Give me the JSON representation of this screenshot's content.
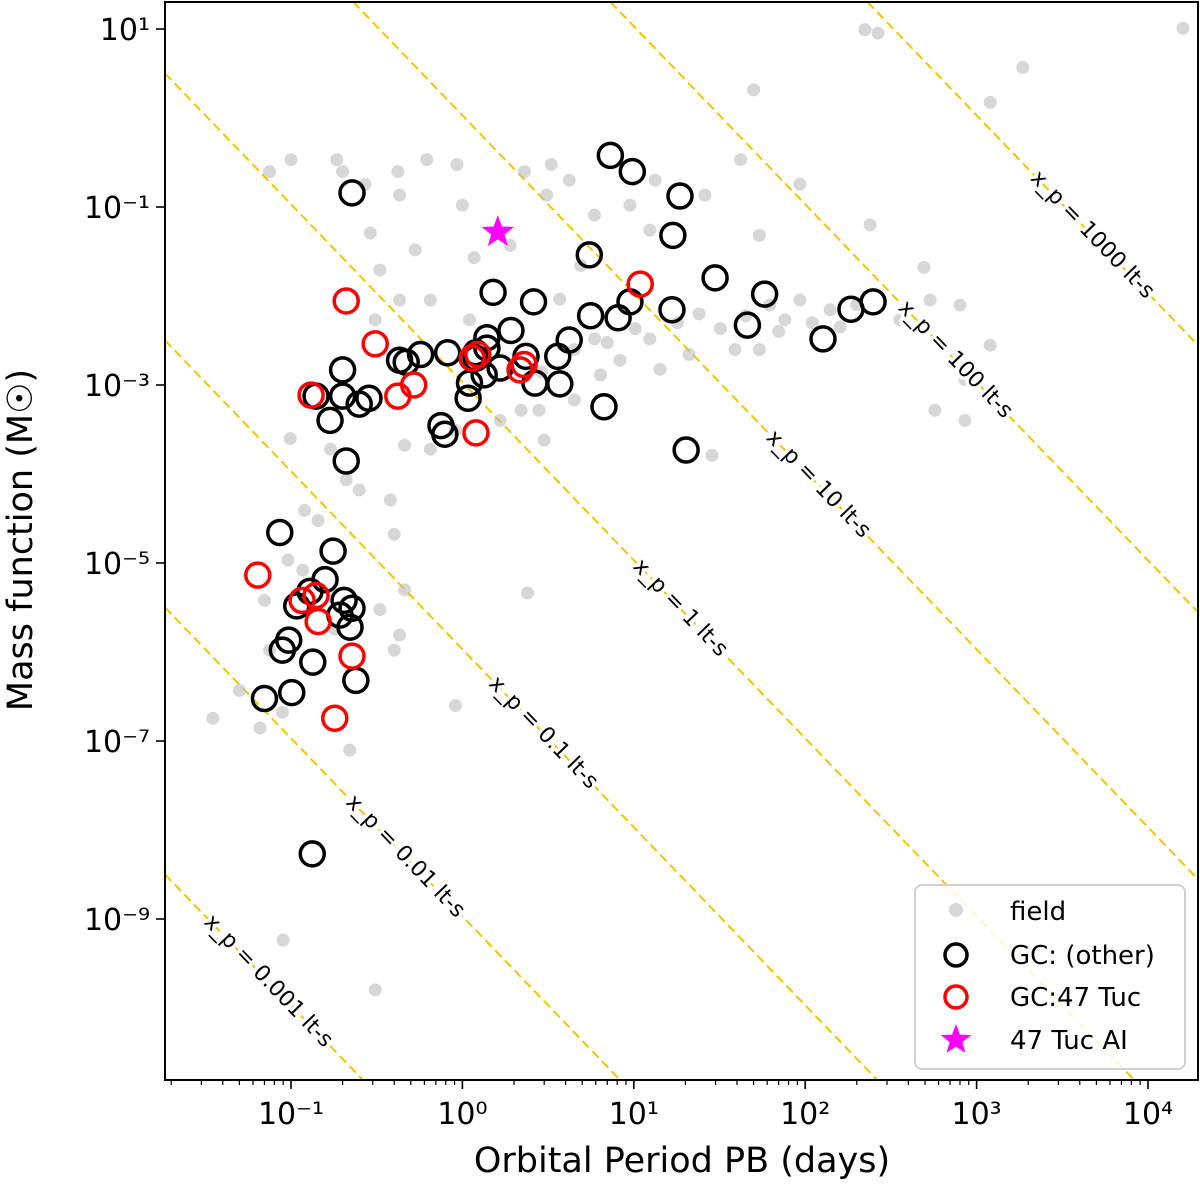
{
  "chart_data": {
    "type": "scatter",
    "xlabel": "Orbital Period PB (days)",
    "ylabel": "Mass function (M☉)",
    "x_scale": "log",
    "y_scale": "log",
    "xlim": [
      0.0186,
      19500
    ],
    "ylim": [
      1.6e-11,
      20
    ],
    "grid": false,
    "legend_position": "bottom-right",
    "x_ticks": [
      {
        "value": 0.1,
        "label": "10⁻¹"
      },
      {
        "value": 1,
        "label": "10⁰"
      },
      {
        "value": 10,
        "label": "10¹"
      },
      {
        "value": 100,
        "label": "10²"
      },
      {
        "value": 1000,
        "label": "10³"
      },
      {
        "value": 10000,
        "label": "10⁴"
      }
    ],
    "y_ticks": [
      {
        "value": 10,
        "label": "10¹"
      },
      {
        "value": 0.1,
        "label": "10⁻¹"
      },
      {
        "value": 0.001,
        "label": "10⁻³"
      },
      {
        "value": 1e-05,
        "label": "10⁻⁵"
      },
      {
        "value": 1e-07,
        "label": "10⁻⁷"
      },
      {
        "value": 1e-09,
        "label": "10⁻⁹"
      }
    ],
    "reference_lines": {
      "color": "#f2c500",
      "style": "dashed",
      "lines": [
        {
          "x_p": 0.001,
          "label": "x_p = 0.001 lt-s"
        },
        {
          "x_p": 0.01,
          "label": "x_p = 0.01 lt-s"
        },
        {
          "x_p": 0.1,
          "label": "x_p = 0.1 lt-s"
        },
        {
          "x_p": 1,
          "label": "x_p = 1 lt-s"
        },
        {
          "x_p": 10,
          "label": "x_p = 10 lt-s"
        },
        {
          "x_p": 100,
          "label": "x_p = 100 lt-s"
        },
        {
          "x_p": 1000,
          "label": "x_p = 1000 lt-s"
        }
      ]
    },
    "series": [
      {
        "name": "field",
        "marker": "dot",
        "color": "#bdbdbd",
        "points": [
          [
            0.075,
            0.25
          ],
          [
            0.1,
            0.34
          ],
          [
            0.185,
            0.34
          ],
          [
            0.2,
            0.25
          ],
          [
            0.27,
            0.18
          ],
          [
            0.42,
            0.25
          ],
          [
            0.43,
            0.136
          ],
          [
            0.62,
            0.34
          ],
          [
            0.93,
            0.3
          ],
          [
            1.0,
            0.105
          ],
          [
            1.17,
            0.027
          ],
          [
            1.9,
            0.037
          ],
          [
            2.3,
            0.25
          ],
          [
            3.3,
            0.3
          ],
          [
            4.2,
            0.2
          ],
          [
            3.1,
            0.136
          ],
          [
            9.5,
            0.105
          ],
          [
            13.3,
            0.2
          ],
          [
            26,
            0.136
          ],
          [
            42,
            0.34
          ],
          [
            54,
            0.048
          ],
          [
            12.4,
            0.055
          ],
          [
            5.9,
            0.081
          ],
          [
            4.9,
            0.022
          ],
          [
            3.7,
            0.0092
          ],
          [
            10.2,
            0.0043
          ],
          [
            12.4,
            0.0033
          ],
          [
            24,
            0.0063
          ],
          [
            32,
            0.0043
          ],
          [
            39,
            0.0025
          ],
          [
            62,
            0.0079
          ],
          [
            76,
            0.0054
          ],
          [
            93,
            0.009
          ],
          [
            54,
            0.0025
          ],
          [
            21,
            0.0022
          ],
          [
            14.2,
            0.0015
          ],
          [
            8.3,
            0.0019
          ],
          [
            6.4,
            0.0013
          ],
          [
            4.5,
            0.00068
          ],
          [
            4.5,
            0.0025
          ],
          [
            5.9,
            0.0033
          ],
          [
            2.8,
            0.00052
          ],
          [
            3.0,
            0.00024
          ],
          [
            2.2,
            0.00052
          ],
          [
            1.66,
            0.0004
          ],
          [
            0.91,
            0.00031
          ],
          [
            0.65,
            0.00019
          ],
          [
            0.46,
            0.00021
          ],
          [
            0.38,
            5.1e-05
          ],
          [
            0.4,
            2.1e-05
          ],
          [
            0.25,
            6.6e-05
          ],
          [
            0.21,
            8.6e-05
          ],
          [
            0.17,
            0.00019
          ],
          [
            0.099,
            0.00025
          ],
          [
            0.12,
            3.9e-05
          ],
          [
            0.144,
            3e-05
          ],
          [
            0.117,
            8.3e-06
          ],
          [
            0.096,
            1.08e-05
          ],
          [
            0.07,
            3.8e-06
          ],
          [
            0.05,
            3.7e-07
          ],
          [
            0.035,
            1.8e-07
          ],
          [
            0.066,
            1.4e-07
          ],
          [
            0.089,
            2.1e-07
          ],
          [
            0.91,
            2.5e-07
          ],
          [
            0.4,
            1.05e-06
          ],
          [
            0.43,
            1.55e-06
          ],
          [
            0.33,
            3e-06
          ],
          [
            0.46,
            5e-06
          ],
          [
            0.18,
            1.8e-06
          ],
          [
            2.4,
            4.6e-06
          ],
          [
            0.075,
            1.05e-06
          ],
          [
            0.22,
            7.9e-08
          ],
          [
            0.43,
            0.009
          ],
          [
            0.31,
            0.0054
          ],
          [
            1.1,
            0.0054
          ],
          [
            0.33,
            0.0196
          ],
          [
            0.53,
            0.033
          ],
          [
            0.65,
            0.009
          ],
          [
            0.29,
            0.051
          ],
          [
            0.31,
            1.6e-10
          ],
          [
            0.09,
            5.8e-10
          ],
          [
            16000,
            10.2
          ],
          [
            223,
            9.8
          ],
          [
            266,
            9.0
          ],
          [
            1860,
            3.7
          ],
          [
            1200,
            1.5
          ],
          [
            50,
            2.07
          ],
          [
            93,
            0.18
          ],
          [
            239,
            0.063
          ],
          [
            493,
            0.021
          ],
          [
            800,
            0.0079
          ],
          [
            1200,
            0.0028
          ],
          [
            855,
            0.00115
          ],
          [
            571,
            0.00052
          ],
          [
            855,
            0.0004
          ],
          [
            28.6,
            0.000162
          ],
          [
            140,
            0.007
          ],
          [
            357,
            0.0054
          ],
          [
            535,
            0.009
          ],
          [
            110,
            0.005
          ],
          [
            70,
            0.004
          ],
          [
            45,
            0.006
          ],
          [
            18,
            0.005
          ],
          [
            7,
            0.003
          ],
          [
            2.9,
            0.0014
          ],
          [
            200,
            0.008
          ],
          [
            160,
            0.0045
          ]
        ]
      },
      {
        "name": "GC: (other)",
        "marker": "open-circle",
        "color": "#000000",
        "points": [
          [
            0.227,
            0.144
          ],
          [
            7.3,
            0.38
          ],
          [
            9.8,
            0.25
          ],
          [
            18.6,
            0.133
          ],
          [
            16.9,
            0.048
          ],
          [
            5.5,
            0.029
          ],
          [
            29.8,
            0.016
          ],
          [
            1.51,
            0.011
          ],
          [
            2.6,
            0.0086
          ],
          [
            9.5,
            0.0086
          ],
          [
            16.7,
            0.007
          ],
          [
            58,
            0.0105
          ],
          [
            5.6,
            0.006
          ],
          [
            8.1,
            0.0057
          ],
          [
            46,
            0.0047
          ],
          [
            185,
            0.0071
          ],
          [
            249,
            0.0086
          ],
          [
            127,
            0.0033
          ],
          [
            1.92,
            0.0041
          ],
          [
            1.39,
            0.0034
          ],
          [
            1.39,
            0.0026
          ],
          [
            1.2,
            0.0023
          ],
          [
            1.2,
            0.002
          ],
          [
            0.82,
            0.0023
          ],
          [
            0.57,
            0.0022
          ],
          [
            0.43,
            0.0019
          ],
          [
            0.47,
            0.0018
          ],
          [
            2.35,
            0.0021
          ],
          [
            3.6,
            0.0021
          ],
          [
            4.2,
            0.0032
          ],
          [
            3.7,
            0.00103
          ],
          [
            2.65,
            0.00105
          ],
          [
            1.66,
            0.00155
          ],
          [
            1.34,
            0.0013
          ],
          [
            1.1,
            0.00105
          ],
          [
            1.08,
            0.00071
          ],
          [
            0.2,
            0.00148
          ],
          [
            0.2,
            0.00075
          ],
          [
            0.14,
            0.00075
          ],
          [
            0.25,
            0.00061
          ],
          [
            0.285,
            0.00071
          ],
          [
            0.169,
            0.0004
          ],
          [
            0.75,
            0.00035
          ],
          [
            0.79,
            0.00028
          ],
          [
            6.7,
            0.00057
          ],
          [
            20.2,
            0.000186
          ],
          [
            0.21,
            0.00014
          ],
          [
            0.086,
            2.2e-05
          ],
          [
            0.176,
            1.36e-05
          ],
          [
            0.158,
            6.5e-06
          ],
          [
            0.129,
            4.8e-06
          ],
          [
            0.108,
            3.3e-06
          ],
          [
            0.204,
            3.8e-06
          ],
          [
            0.227,
            3.1e-06
          ],
          [
            0.193,
            2.6e-06
          ],
          [
            0.221,
            1.9e-06
          ],
          [
            0.097,
            1.36e-06
          ],
          [
            0.089,
            1.05e-06
          ],
          [
            0.134,
            7.7e-07
          ],
          [
            0.239,
            4.8e-07
          ],
          [
            0.07,
            3e-07
          ],
          [
            0.101,
            3.5e-07
          ],
          [
            0.133,
            5.4e-09
          ]
        ]
      },
      {
        "name": "GC:47 Tuc",
        "marker": "open-circle",
        "color": "#ff0000",
        "points": [
          [
            0.21,
            0.0088
          ],
          [
            0.31,
            0.0029
          ],
          [
            0.52,
            0.001
          ],
          [
            0.42,
            0.00075
          ],
          [
            0.131,
            0.00077
          ],
          [
            1.2,
            0.00029
          ],
          [
            1.14,
            0.002
          ],
          [
            1.23,
            0.0022
          ],
          [
            2.17,
            0.00148
          ],
          [
            2.29,
            0.0017
          ],
          [
            10.9,
            0.0136
          ],
          [
            0.064,
            7.3e-06
          ],
          [
            0.116,
            3.8e-06
          ],
          [
            0.14,
            4.3e-06
          ],
          [
            0.144,
            2.2e-06
          ],
          [
            0.227,
            9e-07
          ],
          [
            0.18,
            1.8e-07
          ]
        ]
      },
      {
        "name": "47 Tuc AI",
        "marker": "star",
        "color": "#ff00ff",
        "points": [
          [
            1.61,
            0.052
          ]
        ]
      }
    ]
  }
}
